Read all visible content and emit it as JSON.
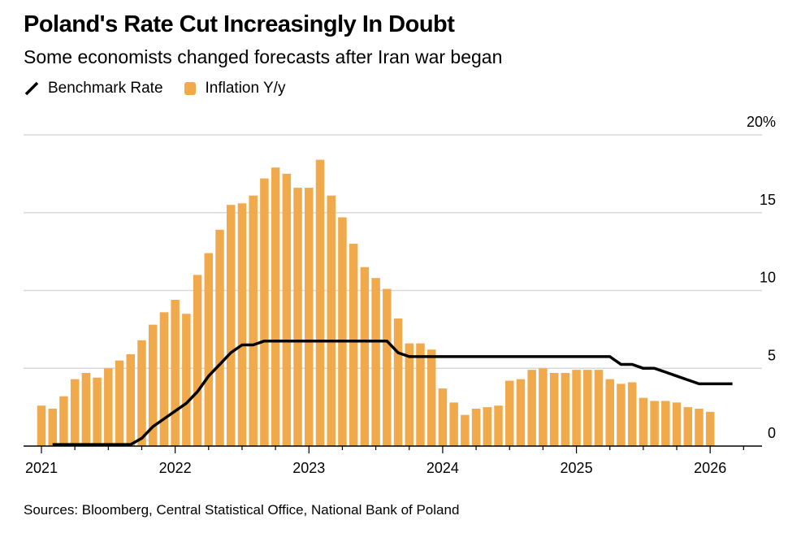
{
  "title": "Poland's Rate Cut Increasingly In Doubt",
  "subtitle": "Some economists changed forecasts after Iran war began",
  "legend": [
    {
      "label": "Benchmark Rate",
      "type": "line",
      "color": "#000000",
      "icon": "line-icon"
    },
    {
      "label": "Inflation Y/y",
      "type": "bar",
      "color": "#f0a94b",
      "icon": "square-swatch-icon"
    }
  ],
  "source": "Sources: Bloomberg, Central Statistical Office, National Bank of Poland",
  "chart_data": {
    "type": "bar",
    "title": "Poland's Rate Cut Increasingly In Doubt",
    "subtitle": "Some economists changed forecasts after Iran war began",
    "xlabel": "",
    "ylabel": "",
    "y_axis_position": "right",
    "ylim": [
      0,
      20
    ],
    "yticks": [
      0,
      5,
      10,
      15,
      20
    ],
    "ytick_labels": [
      "0",
      "5",
      "10",
      "15",
      "20%"
    ],
    "xticks": [
      "2021",
      "2022",
      "2023",
      "2024",
      "2025",
      "2026"
    ],
    "x_start": "2021-01",
    "grid": true,
    "legend_position": "top-left",
    "series": [
      {
        "name": "Inflation Y/y",
        "type": "bar",
        "color": "#f0a94b",
        "start": "2021-01",
        "values": [
          2.6,
          2.4,
          3.2,
          4.3,
          4.7,
          4.4,
          5.0,
          5.5,
          5.9,
          6.8,
          7.8,
          8.6,
          9.4,
          8.5,
          11.0,
          12.4,
          13.9,
          15.5,
          15.6,
          16.1,
          17.2,
          17.9,
          17.5,
          16.6,
          16.6,
          18.4,
          16.1,
          14.7,
          13.0,
          11.5,
          10.8,
          10.1,
          8.2,
          6.6,
          6.6,
          6.2,
          3.7,
          2.8,
          2.0,
          2.4,
          2.5,
          2.6,
          4.2,
          4.3,
          4.9,
          5.0,
          4.7,
          4.7,
          4.9,
          4.9,
          4.9,
          4.3,
          4.0,
          4.1,
          3.1,
          2.9,
          2.9,
          2.8,
          2.5,
          2.4,
          2.2
        ]
      },
      {
        "name": "Benchmark Rate",
        "type": "line",
        "color": "#000000",
        "start": "2021-02",
        "values": [
          0.1,
          0.1,
          0.1,
          0.1,
          0.1,
          0.1,
          0.1,
          0.1,
          0.5,
          1.25,
          1.75,
          2.25,
          2.75,
          3.5,
          4.5,
          5.25,
          6.0,
          6.5,
          6.5,
          6.75,
          6.75,
          6.75,
          6.75,
          6.75,
          6.75,
          6.75,
          6.75,
          6.75,
          6.75,
          6.75,
          6.75,
          6.0,
          5.75,
          5.75,
          5.75,
          5.75,
          5.75,
          5.75,
          5.75,
          5.75,
          5.75,
          5.75,
          5.75,
          5.75,
          5.75,
          5.75,
          5.75,
          5.75,
          5.75,
          5.75,
          5.75,
          5.25,
          5.25,
          5.0,
          5.0,
          4.75,
          4.5,
          4.25,
          4.0,
          4.0,
          4.0,
          4.0
        ]
      }
    ]
  }
}
